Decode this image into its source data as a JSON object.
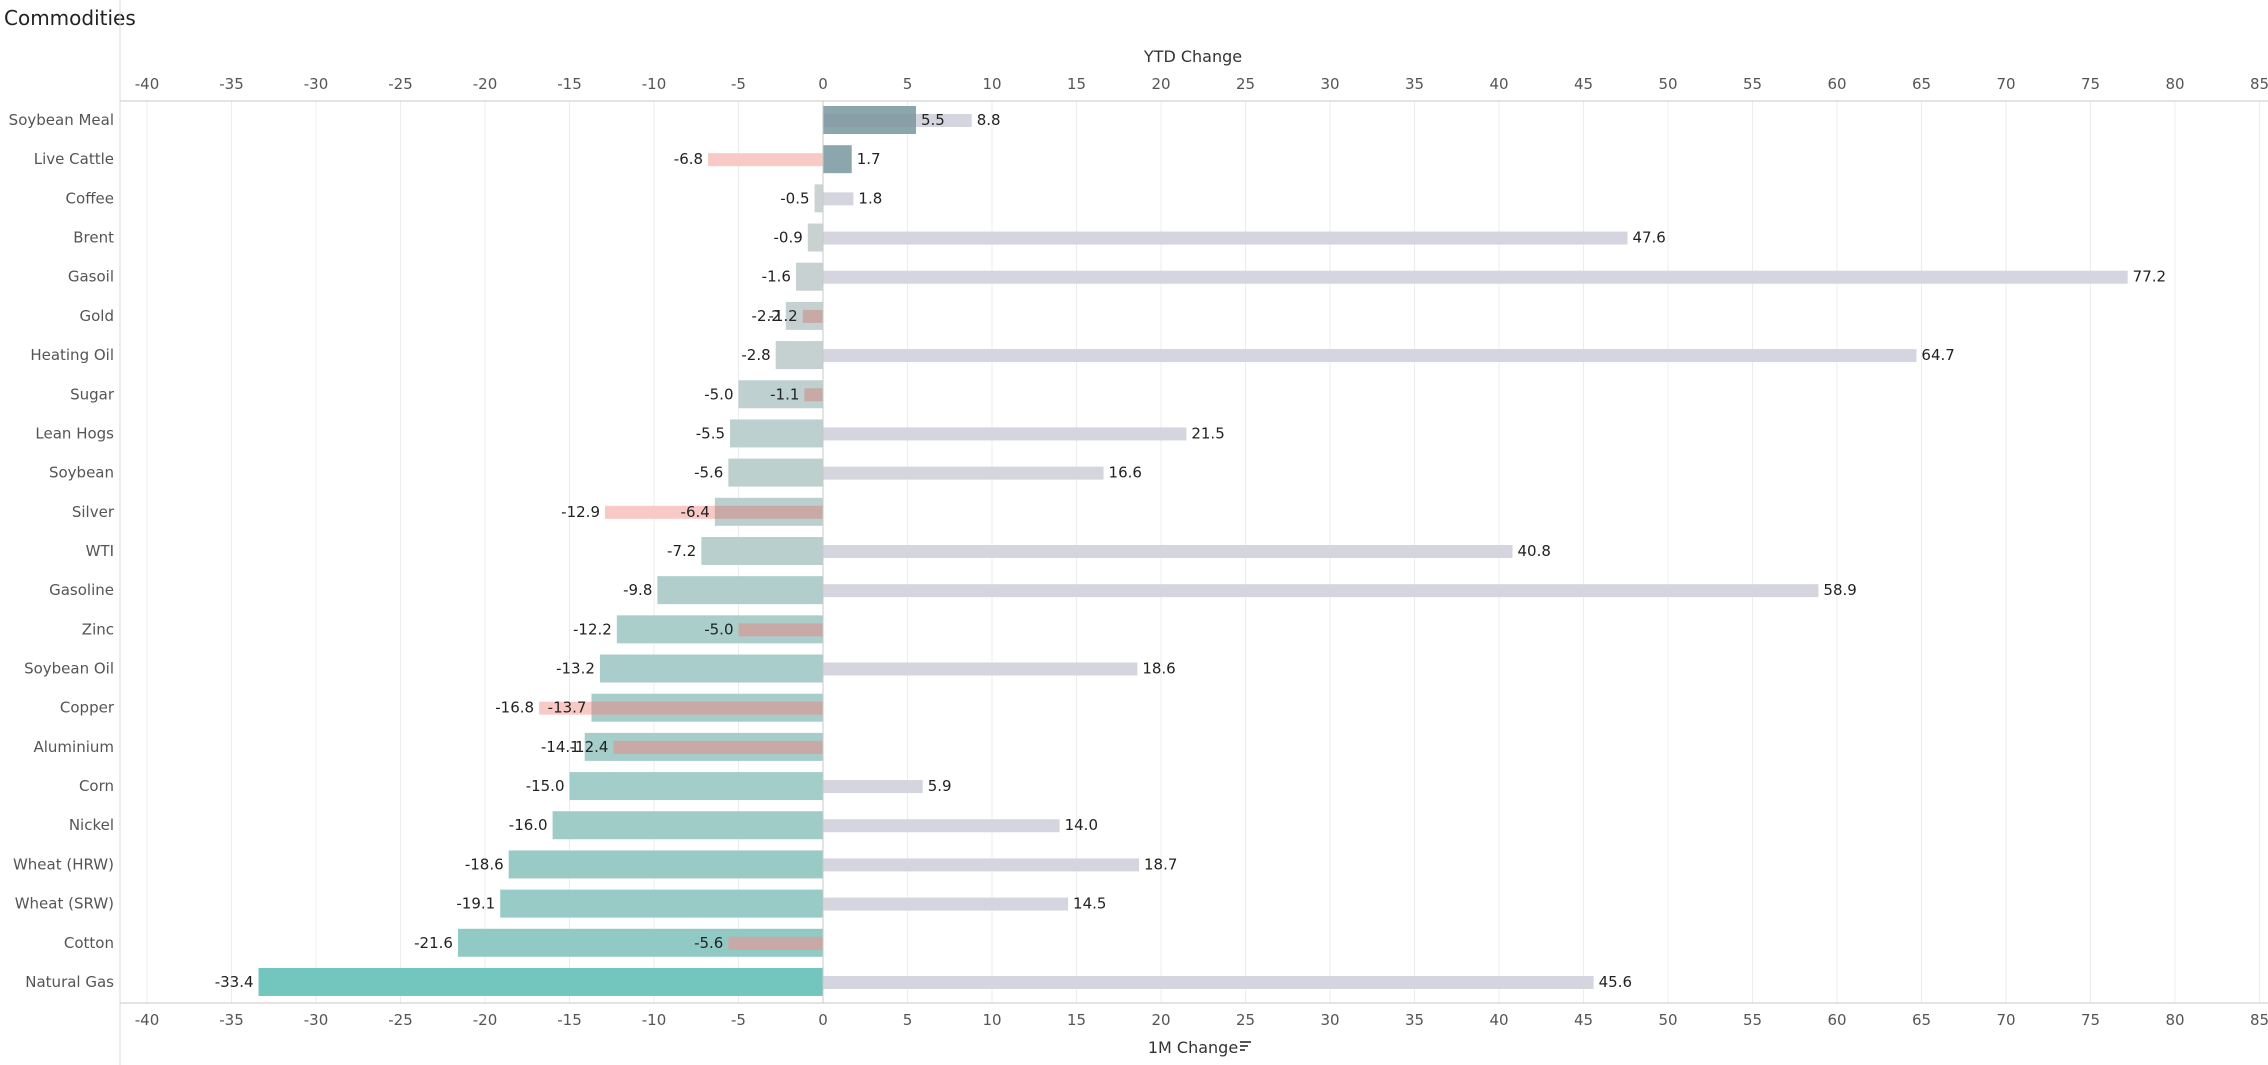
{
  "chart_data": {
    "type": "bar",
    "title": "Commodities",
    "top_axis_label": "YTD Change",
    "bottom_axis_label": "1M Change",
    "xlim": [
      -41.5,
      85
    ],
    "ticks": [
      -40,
      -35,
      -30,
      -25,
      -20,
      -15,
      -10,
      -5,
      0,
      5,
      10,
      15,
      20,
      25,
      30,
      35,
      40,
      45,
      50,
      55,
      60,
      65,
      70,
      75,
      80,
      85
    ],
    "grid": true,
    "categories": [
      "Soybean Meal",
      "Live Cattle",
      "Coffee",
      "Brent",
      "Gasoil",
      "Gold",
      "Heating Oil",
      "Sugar",
      "Lean Hogs",
      "Soybean",
      "Silver",
      "WTI",
      "Gasoline",
      "Zinc",
      "Soybean Oil",
      "Copper",
      "Aluminium",
      "Corn",
      "Nickel",
      "Wheat (HRW)",
      "Wheat (SRW)",
      "Cotton",
      "Natural Gas"
    ],
    "series": [
      {
        "name": "1M Change",
        "values": [
          5.5,
          1.7,
          -0.5,
          -0.9,
          -1.6,
          -2.2,
          -2.8,
          -5.0,
          -5.5,
          -5.6,
          -6.4,
          -7.2,
          -9.8,
          -12.2,
          -13.2,
          -13.7,
          -14.1,
          -15.0,
          -16.0,
          -18.6,
          -19.1,
          -21.6,
          -33.4
        ]
      },
      {
        "name": "YTD Change",
        "values": [
          8.8,
          -6.8,
          1.8,
          47.6,
          77.2,
          -1.2,
          64.7,
          -1.1,
          21.5,
          16.6,
          -12.9,
          40.8,
          58.9,
          -5.0,
          18.6,
          -16.8,
          -12.4,
          5.9,
          14.0,
          18.7,
          14.5,
          -5.6,
          45.6
        ]
      }
    ],
    "colors": {
      "ytd_positive": "#d5d5df",
      "ytd_negative": "#f9c9c6",
      "month_low": "#cbd2d2",
      "month_high": "#72c6bd",
      "month_positive": "#8ba6ad",
      "gridline": "#ececec",
      "axis": "#c8c8c8",
      "label": "#555555"
    },
    "sort_icon": "sort-descending-icon"
  }
}
